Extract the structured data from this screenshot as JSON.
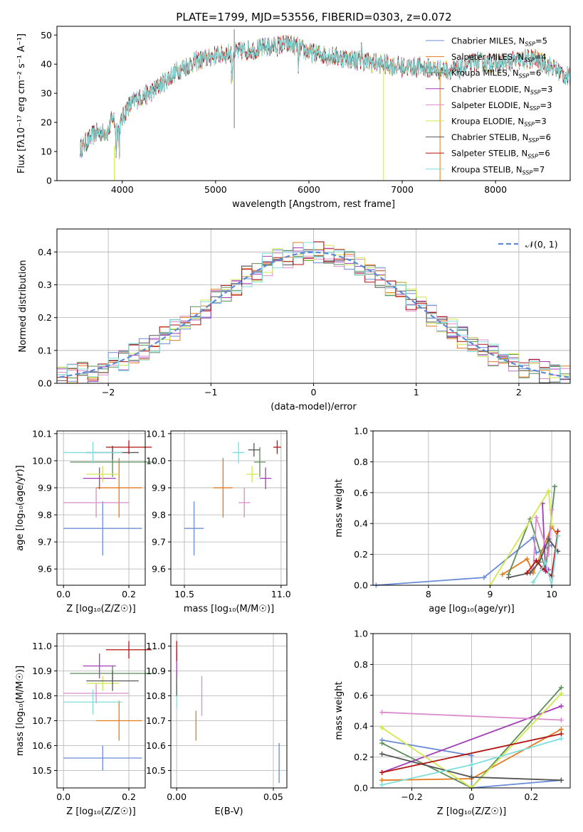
{
  "title": "PLATE=1799, MJD=53556, FIBERID=0303, z=0.072",
  "colors": [
    "#6a8bd8",
    "#e37a1e",
    "#5b8c5a",
    "#a23ab7",
    "#db8bcb",
    "#cfe84c",
    "#555555",
    "#b31212",
    "#7fdedb"
  ],
  "chart_data": [
    {
      "id": "spectrum",
      "type": "line",
      "xlabel": "wavelength [Angstrom, rest frame]",
      "ylabel": "Flux [fλ10⁻¹⁷ erg cm⁻² s⁻¹ A⁻¹]",
      "xlim": [
        3300,
        8800
      ],
      "ylim": [
        0,
        53
      ],
      "xticks": [
        4000,
        5000,
        6000,
        7000,
        8000
      ],
      "yticks": [
        0,
        10,
        20,
        30,
        40,
        50
      ],
      "legend_position": "upper-right",
      "continuum": {
        "x": [
          3550,
          3700,
          3850,
          3900,
          3950,
          4050,
          4150,
          4300,
          4450,
          4600,
          4800,
          5000,
          5200,
          5400,
          5600,
          5800,
          6000,
          6200,
          6400,
          6600,
          6800,
          7000,
          7200,
          7400,
          7600,
          7800,
          8000,
          8200,
          8400,
          8600,
          8800
        ],
        "y": [
          11,
          16,
          17,
          22,
          17,
          25,
          28,
          30,
          34,
          38,
          41,
          43,
          44,
          45,
          46,
          47,
          44,
          43,
          42,
          41,
          40,
          39,
          39,
          38,
          38,
          41,
          40,
          41,
          42,
          39,
          35
        ]
      },
      "series": [
        {
          "name": "Chabrier MILES, N_SSP=5",
          "label": "Chabrier MILES, N",
          "nssp": "5"
        },
        {
          "name": "Salpeter MILES, N_SSP=4",
          "label": "Salpeter MILES, N",
          "nssp": "4"
        },
        {
          "name": "Kroupa MILES, N_SSP=6",
          "label": "Kroupa MILES, N",
          "nssp": "6"
        },
        {
          "name": "Chabrier ELODIE, N_SSP=3",
          "label": "Chabrier ELODIE, N",
          "nssp": "3"
        },
        {
          "name": "Salpeter ELODIE, N_SSP=3",
          "label": "Salpeter ELODIE, N",
          "nssp": "3"
        },
        {
          "name": "Kroupa ELODIE, N_SSP=3",
          "label": "Kroupa ELODIE, N",
          "nssp": "3"
        },
        {
          "name": "Chabrier STELIB, N_SSP=6",
          "label": "Chabrier STELIB, N",
          "nssp": "6"
        },
        {
          "name": "Salpeter STELIB, N_SSP=6",
          "label": "Salpeter STELIB, N",
          "nssp": "6"
        },
        {
          "name": "Kroupa STELIB, N_SSP=7",
          "label": "Kroupa STELIB, N",
          "nssp": "7"
        }
      ]
    },
    {
      "id": "residuals",
      "type": "line",
      "xlabel": "(data-model)/error",
      "ylabel": "Normed distribution",
      "xlim": [
        -2.5,
        2.5
      ],
      "ylim": [
        0,
        0.47
      ],
      "xticks": [
        -2,
        -1,
        0,
        1,
        2
      ],
      "yticks": [
        0.0,
        0.1,
        0.2,
        0.3,
        0.4
      ],
      "bin_width": 0.1,
      "grid": true,
      "legend_position": "upper-right",
      "legend_label": "𝒩(0, 1)"
    },
    {
      "id": "age_vs_Z",
      "type": "scatter",
      "xlabel": "Z [log₁₀(Z/Z☉)]",
      "ylabel": "age  [log₁₀(age/yr)]",
      "xlim": [
        -0.02,
        0.25
      ],
      "ylim": [
        9.54,
        10.11
      ],
      "xticks": [
        0.0,
        0.2
      ],
      "yticks": [
        9.6,
        9.7,
        9.8,
        9.9,
        10.0,
        10.1
      ],
      "grid": true,
      "points": [
        {
          "x": 0.12,
          "y": 9.75,
          "xerr": 0.12,
          "yerr": 0.1
        },
        {
          "x": 0.17,
          "y": 9.9,
          "xerr": 0.07,
          "yerr": 0.11
        },
        {
          "x": 0.15,
          "y": 9.995,
          "xerr": 0.13,
          "yerr": 0.055
        },
        {
          "x": 0.11,
          "y": 9.935,
          "xerr": 0.05,
          "yerr": 0.04
        },
        {
          "x": 0.1,
          "y": 9.845,
          "xerr": 0.1,
          "yerr": 0.055
        },
        {
          "x": 0.12,
          "y": 9.95,
          "xerr": 0.05,
          "yerr": 0.03
        },
        {
          "x": 0.15,
          "y": 10.03,
          "xerr": 0.08,
          "yerr": 0.025
        },
        {
          "x": 0.2,
          "y": 10.05,
          "xerr": 0.07,
          "yerr": 0.025
        },
        {
          "x": 0.09,
          "y": 10.03,
          "xerr": 0.09,
          "yerr": 0.04
        }
      ]
    },
    {
      "id": "age_vs_mass",
      "type": "scatter",
      "xlabel": "mass [log₁₀(M/M☉)]",
      "ylabel": "",
      "xlim": [
        10.43,
        11.03
      ],
      "ylim": [
        9.54,
        10.11
      ],
      "xticks": [
        10.5,
        11.0
      ],
      "yticks": [
        9.6,
        9.7,
        9.8,
        9.9,
        10.0,
        10.1
      ],
      "grid": true,
      "points": [
        {
          "x": 10.55,
          "y": 9.75,
          "xerr": 0.05,
          "yerr": 0.1
        },
        {
          "x": 10.7,
          "y": 9.9,
          "xerr": 0.05,
          "yerr": 0.11
        },
        {
          "x": 10.89,
          "y": 9.995,
          "xerr": 0.03,
          "yerr": 0.055
        },
        {
          "x": 10.92,
          "y": 9.935,
          "xerr": 0.03,
          "yerr": 0.04
        },
        {
          "x": 10.81,
          "y": 9.845,
          "xerr": 0.03,
          "yerr": 0.055
        },
        {
          "x": 10.85,
          "y": 9.95,
          "xerr": 0.03,
          "yerr": 0.03
        },
        {
          "x": 10.86,
          "y": 10.04,
          "xerr": 0.03,
          "yerr": 0.025
        },
        {
          "x": 10.98,
          "y": 10.05,
          "xerr": 0.02,
          "yerr": 0.025
        },
        {
          "x": 10.78,
          "y": 10.03,
          "xerr": 0.03,
          "yerr": 0.04
        }
      ]
    },
    {
      "id": "weight_vs_age",
      "type": "line",
      "xlabel": "age  [log₁₀(age/yr)]",
      "ylabel": "mass weight",
      "xlim": [
        7.1,
        10.3
      ],
      "ylim": [
        0,
        1.0
      ],
      "xticks": [
        8,
        9,
        10
      ],
      "yticks": [
        0.0,
        0.2,
        0.4,
        0.6,
        0.8,
        1.0
      ],
      "grid": true,
      "series": [
        {
          "x": [
            7.15,
            8.9,
            9.7,
            9.75,
            10.0
          ],
          "y": [
            0.0,
            0.05,
            0.31,
            0.21,
            0.26
          ]
        },
        {
          "x": [
            9.2,
            9.6,
            9.7,
            10.0,
            10.1
          ],
          "y": [
            0.07,
            0.17,
            0.08,
            0.38,
            0.32
          ]
        },
        {
          "x": [
            9.3,
            9.65,
            9.9,
            10.05
          ],
          "y": [
            0.07,
            0.43,
            0.1,
            0.64
          ]
        },
        {
          "x": [
            9.85,
            9.9,
            9.95
          ],
          "y": [
            0.53,
            0.09,
            0.1
          ]
        },
        {
          "x": [
            9.7,
            9.75,
            9.95,
            10.0
          ],
          "y": [
            0.11,
            0.44,
            0.2,
            0.49
          ]
        },
        {
          "x": [
            9.0,
            9.95,
            10.0
          ],
          "y": [
            0.0,
            0.61,
            0.39
          ]
        },
        {
          "x": [
            9.3,
            9.65,
            9.8,
            9.95,
            10.1
          ],
          "y": [
            0.05,
            0.08,
            0.15,
            0.3,
            0.22
          ]
        },
        {
          "x": [
            9.6,
            9.75,
            9.85,
            10.0,
            10.1
          ],
          "y": [
            0.08,
            0.16,
            0.11,
            0.06,
            0.35
          ]
        },
        {
          "x": [
            9.7,
            9.9,
            10.0,
            10.1
          ],
          "y": [
            0.02,
            0.15,
            0.0,
            0.32
          ]
        }
      ]
    },
    {
      "id": "mass_vs_Z",
      "type": "scatter",
      "xlabel": "Z [log₁₀(Z/Z☉)]",
      "ylabel": "mass [log₁₀(M/M☉)]",
      "xlim": [
        -0.02,
        0.25
      ],
      "ylim": [
        10.43,
        11.05
      ],
      "xticks": [
        0.0,
        0.2
      ],
      "yticks": [
        10.5,
        10.6,
        10.7,
        10.8,
        10.9,
        11.0
      ],
      "grid": true,
      "points": [
        {
          "x": 0.12,
          "y": 10.55,
          "xerr": 0.12,
          "yerr": 0.05
        },
        {
          "x": 0.17,
          "y": 10.7,
          "xerr": 0.07,
          "yerr": 0.08
        },
        {
          "x": 0.15,
          "y": 10.89,
          "xerr": 0.13,
          "yerr": 0.03
        },
        {
          "x": 0.11,
          "y": 10.92,
          "xerr": 0.05,
          "yerr": 0.05
        },
        {
          "x": 0.1,
          "y": 10.81,
          "xerr": 0.1,
          "yerr": 0.04
        },
        {
          "x": 0.12,
          "y": 10.85,
          "xerr": 0.05,
          "yerr": 0.03
        },
        {
          "x": 0.15,
          "y": 10.86,
          "xerr": 0.08,
          "yerr": 0.04
        },
        {
          "x": 0.2,
          "y": 10.985,
          "xerr": 0.07,
          "yerr": 0.035
        },
        {
          "x": 0.09,
          "y": 10.775,
          "xerr": 0.09,
          "yerr": 0.05
        }
      ]
    },
    {
      "id": "mass_vs_ebv",
      "type": "scatter",
      "xlabel": "E(B-V)",
      "ylabel": "",
      "xlim": [
        -0.003,
        0.057
      ],
      "ylim": [
        10.43,
        11.05
      ],
      "xticks": [
        0.0,
        0.05
      ],
      "yticks": [
        10.5,
        10.6,
        10.7,
        10.8,
        10.9,
        11.0
      ],
      "grid": true,
      "points": [
        {
          "x": 0.053,
          "y": 10.53,
          "yerr": 0.08
        },
        {
          "x": 0.01,
          "y": 10.68,
          "yerr": 0.06
        },
        {
          "x": 0.013,
          "y": 10.8,
          "yerr": 0.08
        },
        {
          "x": 0.0,
          "y": 10.8,
          "yerr": 0.05
        },
        {
          "x": 0.0,
          "y": 10.85,
          "yerr": 0.05
        },
        {
          "x": 0.0,
          "y": 10.93,
          "yerr": 0.05
        },
        {
          "x": 0.0,
          "y": 10.98,
          "yerr": 0.04
        }
      ]
    },
    {
      "id": "weight_vs_Z",
      "type": "line",
      "xlabel": "Z [log₁₀(Z/Z☉)]",
      "ylabel": "mass weight",
      "xlim": [
        -0.33,
        0.33
      ],
      "ylim": [
        0,
        1.0
      ],
      "xticks": [
        -0.2,
        0.0,
        0.2
      ],
      "yticks": [
        0.0,
        0.2,
        0.4,
        0.6,
        0.8,
        1.0
      ],
      "grid": true,
      "series": [
        {
          "x": [
            -0.3,
            0.0,
            0.0,
            0.3
          ],
          "y": [
            0.31,
            0.21,
            0.0,
            0.05
          ]
        },
        {
          "x": [
            -0.3,
            0.0,
            0.3
          ],
          "y": [
            0.05,
            0.06,
            0.38
          ]
        },
        {
          "x": [
            -0.3,
            0.0,
            0.3
          ],
          "y": [
            0.29,
            0.0,
            0.65
          ]
        },
        {
          "x": [
            -0.3,
            0.3
          ],
          "y": [
            0.1,
            0.53
          ]
        },
        {
          "x": [
            -0.3,
            0.3
          ],
          "y": [
            0.49,
            0.44
          ]
        },
        {
          "x": [
            -0.3,
            0.0,
            0.3
          ],
          "y": [
            0.39,
            0.0,
            0.61
          ]
        },
        {
          "x": [
            -0.3,
            0.0,
            0.3
          ],
          "y": [
            0.22,
            0.07,
            0.05
          ]
        },
        {
          "x": [
            -0.3,
            0.3
          ],
          "y": [
            0.1,
            0.35
          ]
        },
        {
          "x": [
            -0.3,
            0.0,
            0.3
          ],
          "y": [
            0.02,
            0.15,
            0.32
          ]
        }
      ]
    }
  ]
}
